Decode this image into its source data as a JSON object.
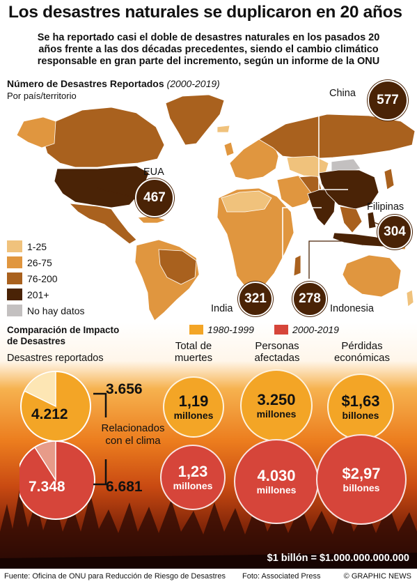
{
  "title": "Los desastres naturales se duplicaron en 20 años",
  "subtitle": [
    "Se ha reportado casi el doble de desastres naturales en los pasados 20",
    "años frente a las dos décadas precedentes, siendo el cambio climático",
    "responsable en gran parte del incremento, según un informe de la ONU"
  ],
  "map": {
    "heading": "Número de Desastres Reportados",
    "years": "(2000-2019)",
    "sub": "Por país/territorio",
    "callouts": [
      {
        "label": "China",
        "value": "577"
      },
      {
        "label": "EUA",
        "value": "467"
      },
      {
        "label": "Filipinas",
        "value": "304"
      },
      {
        "label": "India",
        "value": "321"
      },
      {
        "label": "Indonesia",
        "value": "278"
      }
    ],
    "legend": [
      {
        "label": "1-25",
        "color": "#f0c27c"
      },
      {
        "label": "26-75",
        "color": "#e0963f"
      },
      {
        "label": "76-200",
        "color": "#a9611e"
      },
      {
        "label": "201+",
        "color": "#4a2306"
      },
      {
        "label": "No hay datos",
        "color": "#c3c0c0"
      }
    ]
  },
  "impact": {
    "heading_line1": "Comparación de Impacto",
    "heading_line2": "de Desastres",
    "legend": [
      {
        "label": "1980-1999",
        "color": "#f3a526"
      },
      {
        "label": "2000-2019",
        "color": "#d6453a"
      }
    ],
    "reported": {
      "title": "Desastres reportados",
      "climate_label_1": "Relacionados",
      "climate_label_2": "con el clima",
      "total_1980": "4.212",
      "climate_1980": "3.656",
      "total_2000": "7.348",
      "climate_2000": "6.681"
    },
    "columns": [
      {
        "title_1": "Total de",
        "title_2": "muertes",
        "v1980": "1,19",
        "u1980": "millones",
        "v2000": "1,23",
        "u2000": "millones"
      },
      {
        "title_1": "Personas",
        "title_2": "afectadas",
        "v1980": "3.250",
        "u1980": "millones",
        "v2000": "4.030",
        "u2000": "millones"
      },
      {
        "title_1": "Pérdidas",
        "title_2": "económicas",
        "v1980": "$1,63",
        "u1980": "billones",
        "v2000": "$2,97",
        "u2000": "billones"
      }
    ],
    "note": "$1 billón = $1.000.000.000.000"
  },
  "footer": {
    "source": "Fuente: Oficina de ONU para Reducción de Riesgo de Desastres",
    "photo": "Foto: Associated Press",
    "credit": "© GRAPHIC NEWS"
  }
}
